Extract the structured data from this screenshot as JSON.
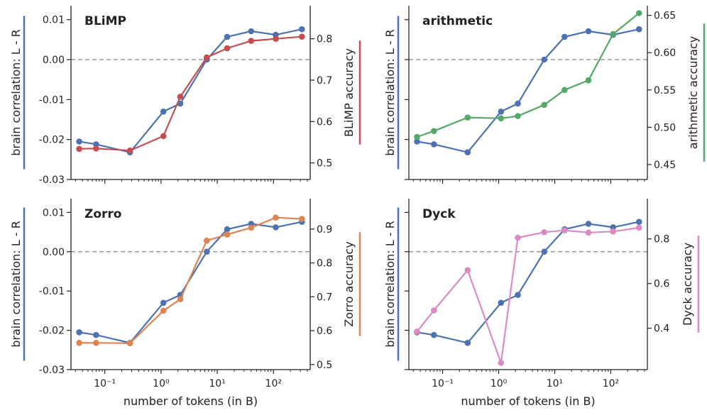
{
  "colors": {
    "brain": "#4c72b0",
    "blimp": "#c44e52",
    "arithmetic": "#55a868",
    "zorro": "#dd8452",
    "dyck": "#da8bc3",
    "axis": "#222222",
    "zero_line": "#999999"
  },
  "shared": {
    "xlabel": "number of tokens (in B)",
    "left_ylabel": "brain correlation: L - R",
    "x_tick_labels": [
      "10⁻¹",
      "10⁰",
      "10¹",
      "10²"
    ],
    "left_tick_labels": [
      "0.01",
      "0.00",
      "-0.01",
      "-0.02",
      "-0.03"
    ]
  },
  "chart_data": [
    {
      "type": "line",
      "title": "BLiMP",
      "xlabel": "number of tokens (in B)",
      "ylabel": "brain correlation: L - R",
      "ylabel_right": "BLiMP accuracy",
      "x_scale": "log",
      "xlim": [
        0.025,
        450
      ],
      "ylim": [
        -0.03,
        0.0135
      ],
      "ylim_right": [
        0.46,
        0.88
      ],
      "right_tick_labels": [
        "0.5",
        "0.6",
        "0.7",
        "0.8"
      ],
      "x": [
        0.035,
        0.07,
        0.28,
        1.1,
        2.2,
        6.5,
        15,
        40,
        110,
        320
      ],
      "series": [
        {
          "color_key": "brain",
          "axis": "left",
          "values": [
            -0.0205,
            -0.0212,
            -0.0232,
            -0.013,
            -0.011,
            0.0,
            0.0057,
            0.0071,
            0.0062,
            0.0076
          ]
        },
        {
          "color_key": "blimp",
          "axis": "right",
          "values": [
            0.534,
            0.535,
            0.53,
            0.565,
            0.66,
            0.755,
            0.777,
            0.795,
            0.8,
            0.805
          ]
        }
      ]
    },
    {
      "type": "line",
      "title": "arithmetic",
      "xlabel": "number of tokens (in B)",
      "ylabel": "brain correlation: L - R",
      "ylabel_right": "arithmetic accuracy",
      "x_scale": "log",
      "xlim": [
        0.025,
        450
      ],
      "ylim": [
        -0.03,
        0.0135
      ],
      "ylim_right": [
        0.43,
        0.663
      ],
      "right_tick_labels": [
        "0.45",
        "0.50",
        "0.55",
        "0.60",
        "0.65"
      ],
      "x": [
        0.035,
        0.07,
        0.28,
        1.1,
        2.2,
        6.5,
        15,
        40,
        110,
        320
      ],
      "series": [
        {
          "color_key": "brain",
          "axis": "left",
          "values": [
            -0.0205,
            -0.0212,
            -0.0232,
            -0.013,
            -0.011,
            0.0,
            0.0057,
            0.0071,
            0.0062,
            0.0076
          ]
        },
        {
          "color_key": "arithmetic",
          "axis": "right",
          "values": [
            0.487,
            0.495,
            0.513,
            0.512,
            0.515,
            0.53,
            0.55,
            0.563,
            0.625,
            0.653
          ]
        }
      ]
    },
    {
      "type": "line",
      "title": "Zorro",
      "xlabel": "number of tokens (in B)",
      "ylabel": "brain correlation: L - R",
      "ylabel_right": "Zorro accuracy",
      "x_scale": "log",
      "xlim": [
        0.025,
        450
      ],
      "ylim": [
        -0.03,
        0.0135
      ],
      "ylim_right": [
        0.485,
        0.99
      ],
      "right_tick_labels": [
        "0.5",
        "0.6",
        "0.7",
        "0.8",
        "0.9"
      ],
      "x": [
        0.035,
        0.07,
        0.28,
        1.1,
        2.2,
        6.5,
        15,
        40,
        110,
        320
      ],
      "series": [
        {
          "color_key": "brain",
          "axis": "left",
          "values": [
            -0.0205,
            -0.0212,
            -0.0232,
            -0.013,
            -0.011,
            0.0,
            0.0057,
            0.0071,
            0.0062,
            0.0076
          ]
        },
        {
          "color_key": "zorro",
          "axis": "right",
          "values": [
            0.564,
            0.564,
            0.563,
            0.659,
            0.693,
            0.866,
            0.884,
            0.904,
            0.934,
            0.93
          ]
        }
      ]
    },
    {
      "type": "line",
      "title": "Dyck",
      "xlabel": "number of tokens (in B)",
      "ylabel": "brain correlation: L - R",
      "ylabel_right": "Dyck accuracy",
      "x_scale": "log",
      "xlim": [
        0.025,
        450
      ],
      "ylim": [
        -0.03,
        0.0135
      ],
      "ylim_right": [
        0.215,
        0.98
      ],
      "right_tick_labels": [
        "0.4",
        "0.6",
        "0.8"
      ],
      "x": [
        0.035,
        0.07,
        0.28,
        1.1,
        2.2,
        6.5,
        15,
        40,
        110,
        320
      ],
      "series": [
        {
          "color_key": "brain",
          "axis": "left",
          "values": [
            -0.0205,
            -0.0212,
            -0.0232,
            -0.013,
            -0.011,
            0.0,
            0.0057,
            0.0071,
            0.0062,
            0.0076
          ]
        },
        {
          "color_key": "dyck",
          "axis": "right",
          "values": [
            0.385,
            0.48,
            0.66,
            0.245,
            0.805,
            0.83,
            0.838,
            0.828,
            0.833,
            0.85
          ]
        }
      ]
    }
  ]
}
